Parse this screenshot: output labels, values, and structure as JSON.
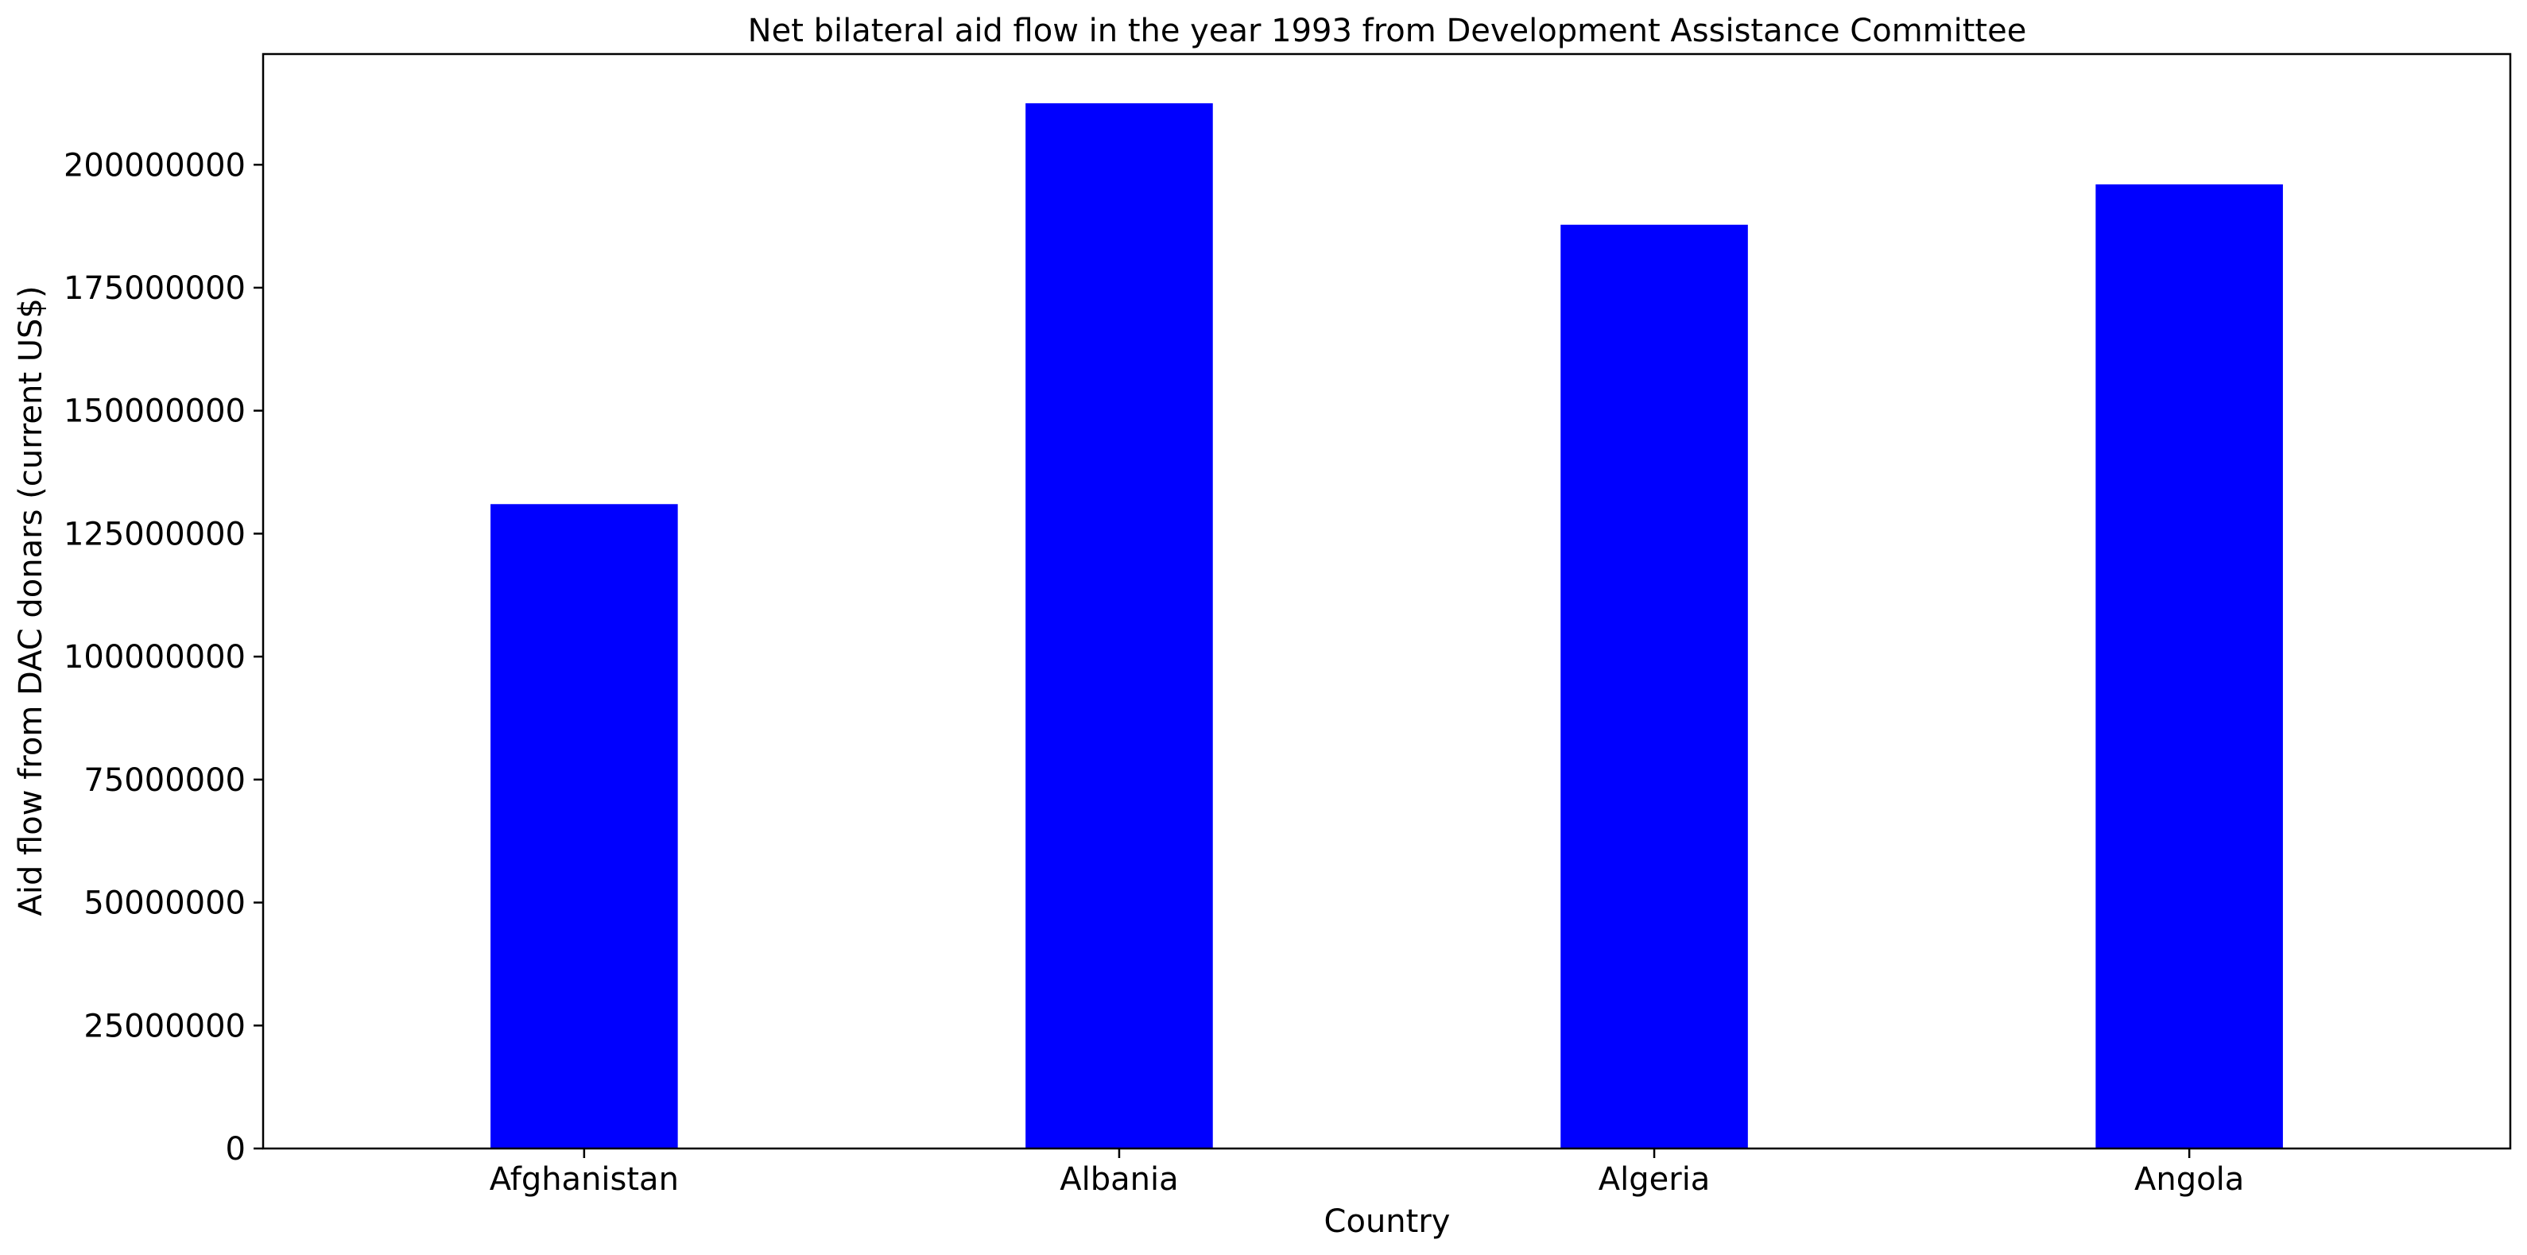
{
  "chart_data": {
    "type": "bar",
    "title": "Net bilateral aid flow in the year 1993 from Development Assistance Committee",
    "xlabel": "Country",
    "ylabel": "Aid flow from DAC donars (current US$)",
    "categories": [
      "Afghanistan",
      "Albania",
      "Algeria",
      "Angola"
    ],
    "series": [
      {
        "values": [
          131000000,
          212500000,
          187800000,
          196000000
        ]
      }
    ],
    "ylim": [
      0,
      222500000
    ],
    "yticks": [
      0,
      25000000,
      50000000,
      75000000,
      100000000,
      125000000,
      150000000,
      175000000,
      200000000
    ],
    "ytick_labels": [
      "0",
      "25000000",
      "50000000",
      "75000000",
      "100000000",
      "125000000",
      "150000000",
      "175000000",
      "200000000"
    ],
    "bar_color": "#0000ff",
    "grid": false,
    "legend": "none"
  }
}
